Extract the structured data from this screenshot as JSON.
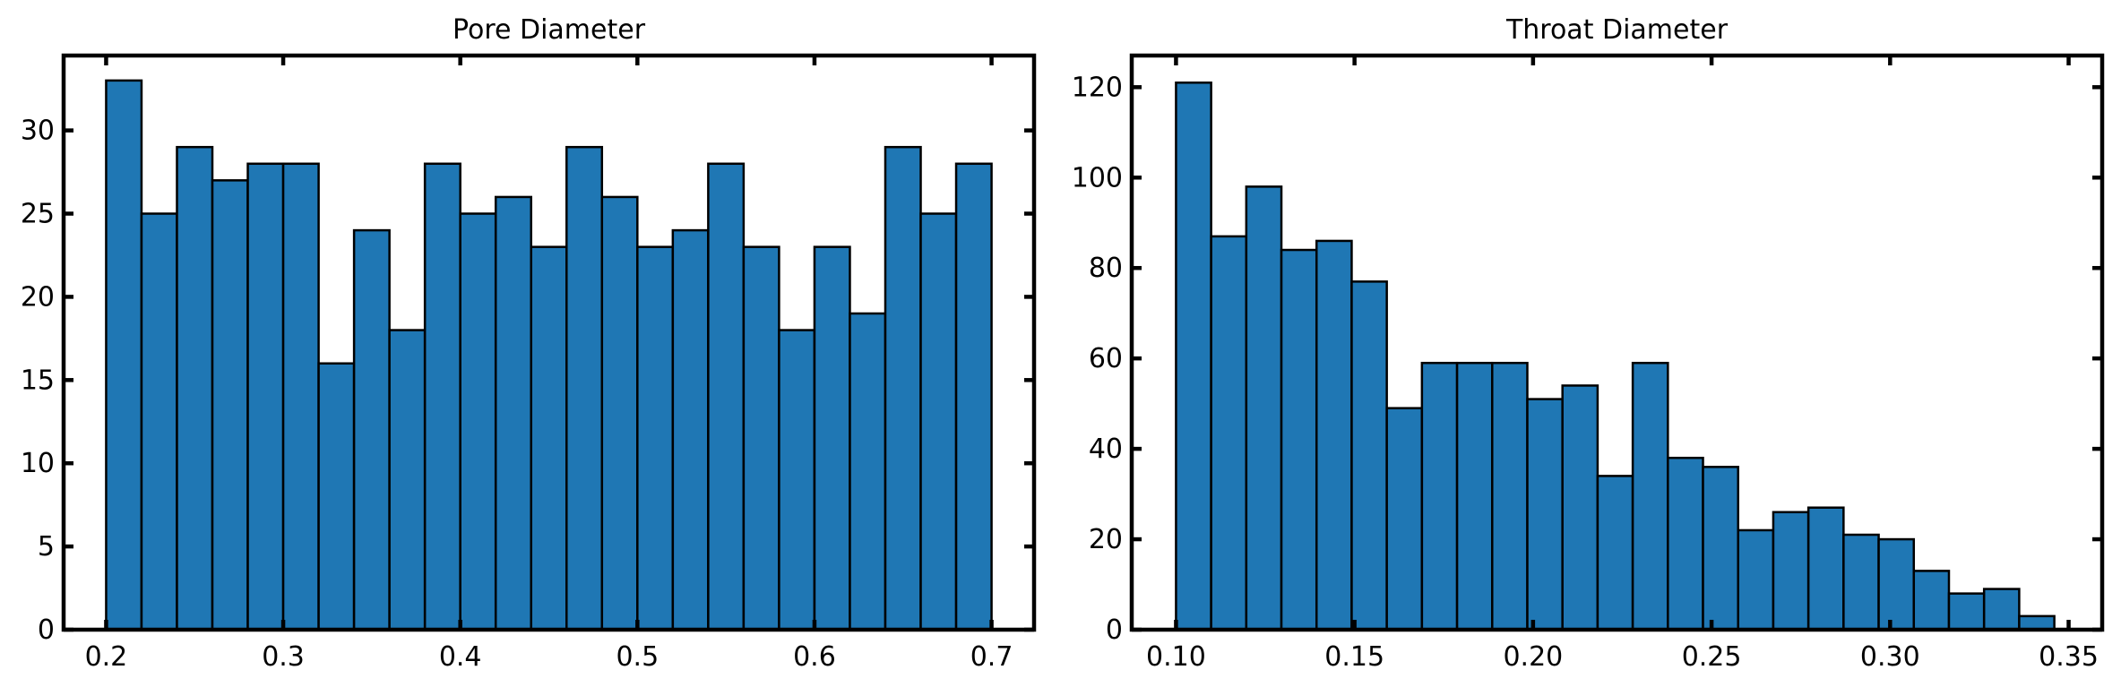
{
  "chart_data": [
    {
      "type": "bar",
      "title": "Pore Diameter",
      "xlabel": "",
      "ylabel": "",
      "xlim": [
        0.176,
        0.724
      ],
      "ylim": [
        0,
        34.5
      ],
      "bin_start": 0.2,
      "bin_width": 0.02,
      "values": [
        33,
        25,
        29,
        27,
        28,
        28,
        16,
        24,
        18,
        28,
        25,
        26,
        23,
        29,
        26,
        23,
        24,
        28,
        23,
        18,
        23,
        19,
        29,
        25,
        28
      ],
      "xticks": [
        0.2,
        0.3,
        0.4,
        0.5,
        0.6,
        0.7
      ],
      "xtick_labels": [
        "0.2",
        "0.3",
        "0.4",
        "0.5",
        "0.6",
        "0.7"
      ],
      "yticks": [
        0,
        5,
        10,
        15,
        20,
        25,
        30
      ],
      "ytick_labels": [
        "0",
        "5",
        "10",
        "15",
        "20",
        "25",
        "30"
      ],
      "color": "#1f77b4",
      "edge_color": "#000000",
      "grid": false,
      "ticks_on_all_sides": true
    },
    {
      "type": "bar",
      "title": "Throat Diameter",
      "xlabel": "",
      "ylabel": "",
      "xlim": [
        0.0876,
        0.3594
      ],
      "ylim": [
        0,
        127
      ],
      "bin_start": 0.1,
      "bin_width": 0.00984,
      "values": [
        121,
        87,
        98,
        84,
        86,
        77,
        49,
        59,
        59,
        59,
        51,
        54,
        34,
        59,
        38,
        36,
        22,
        26,
        27,
        21,
        20,
        13,
        8,
        9,
        3
      ],
      "xticks": [
        0.1,
        0.15,
        0.2,
        0.25,
        0.3,
        0.35
      ],
      "xtick_labels": [
        "0.10",
        "0.15",
        "0.20",
        "0.25",
        "0.30",
        "0.35"
      ],
      "yticks": [
        0,
        20,
        40,
        60,
        80,
        100,
        120
      ],
      "ytick_labels": [
        "0",
        "20",
        "40",
        "60",
        "80",
        "100",
        "120"
      ],
      "color": "#1f77b4",
      "edge_color": "#000000",
      "grid": false,
      "ticks_on_all_sides": true
    }
  ]
}
